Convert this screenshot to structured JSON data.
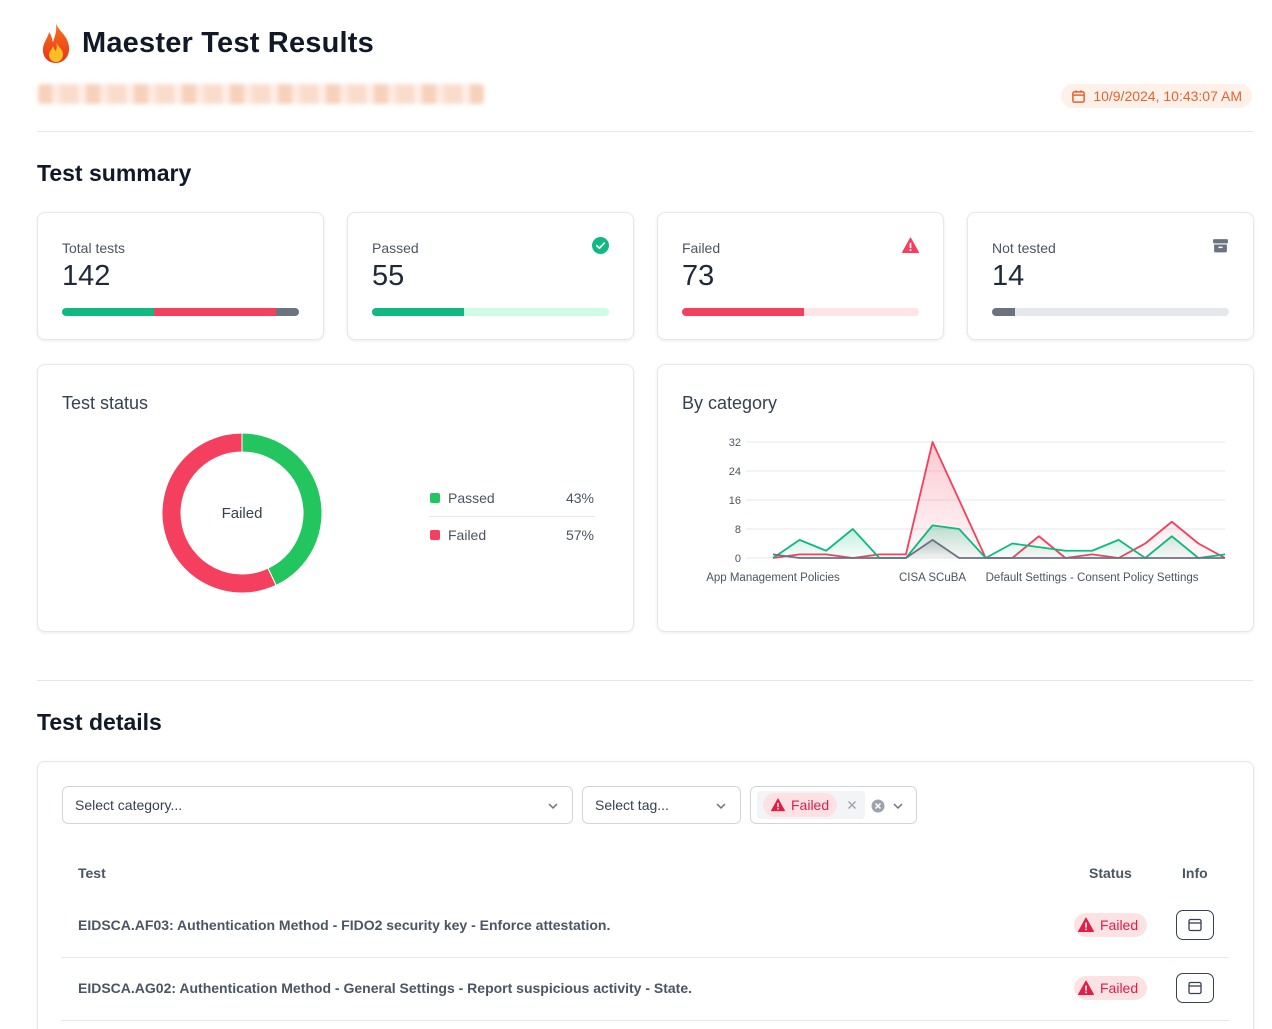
{
  "header": {
    "title": "Maester Test Results",
    "date": "10/9/2024, 10:43:07 AM"
  },
  "summary": {
    "title": "Test summary",
    "cards": [
      {
        "label": "Total tests",
        "value": "142"
      },
      {
        "label": "Passed",
        "value": "55",
        "icon": "check-circle-icon",
        "fill": 0.387
      },
      {
        "label": "Failed",
        "value": "73",
        "icon": "warning-triangle-icon",
        "fill": 0.514
      },
      {
        "label": "Not tested",
        "value": "14",
        "icon": "archive-box-icon",
        "fill": 0.099
      }
    ]
  },
  "status_panel": {
    "title": "Test status",
    "center_label": "Failed",
    "legend": [
      {
        "name": "Passed",
        "pct": "43%",
        "color": "#22c55e"
      },
      {
        "name": "Failed",
        "pct": "57%",
        "color": "#f43f5e"
      }
    ]
  },
  "category_panel": {
    "title": "By category"
  },
  "chart_data": [
    {
      "type": "pie",
      "categories": [
        "Passed",
        "Failed"
      ],
      "values": [
        43,
        57
      ],
      "colors": [
        "#22c55e",
        "#f43f5e"
      ]
    },
    {
      "type": "area",
      "title": "By category",
      "ylim": [
        0,
        32
      ],
      "yticks": [
        0,
        8,
        16,
        24,
        32
      ],
      "x_tick_labels": [
        "App Management Policies",
        "CISA SCuBA",
        "Default Settings - Consent Policy Settings"
      ],
      "series": [
        {
          "color": "#f43f5e",
          "values": [
            0,
            1,
            1,
            0,
            1,
            1,
            32,
            16,
            0,
            0,
            6,
            0,
            1,
            0,
            4,
            10,
            4,
            0
          ]
        },
        {
          "color": "#10b981",
          "values": [
            0,
            5,
            2,
            8,
            0,
            0,
            9,
            8,
            0,
            4,
            3,
            2,
            2,
            5,
            0,
            6,
            0,
            1
          ]
        },
        {
          "color": "#6b7280",
          "values": [
            1,
            0,
            0,
            0,
            0,
            0,
            5,
            0,
            0,
            0,
            0,
            0,
            0,
            0,
            0,
            0,
            0,
            0
          ]
        }
      ]
    }
  ],
  "details": {
    "title": "Test details",
    "category_placeholder": "Select category...",
    "tag_placeholder": "Select tag...",
    "status_filter": "Failed",
    "columns": {
      "test": "Test",
      "status": "Status",
      "info": "Info"
    },
    "rows": [
      {
        "test": "EIDSCA.AF03: Authentication Method - FIDO2 security key - Enforce attestation.",
        "status": "Failed"
      },
      {
        "test": "EIDSCA.AG02: Authentication Method - General Settings - Report suspicious activity - State.",
        "status": "Failed"
      }
    ]
  },
  "colors": {
    "passed": "#10b981",
    "failed": "#f43f5e",
    "not_tested": "#6b7280",
    "accent": "#e4632d"
  }
}
